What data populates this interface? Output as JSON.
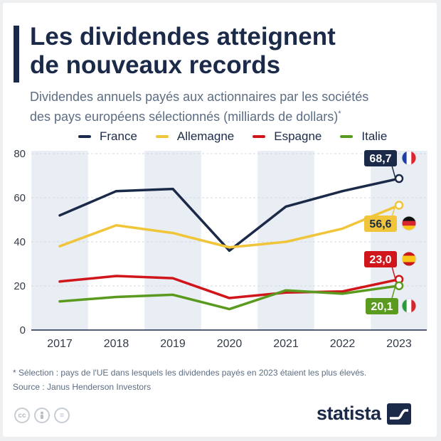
{
  "header": {
    "title_line1": "Les dividendes atteignent",
    "title_line2": "de nouveaux records",
    "subtitle_line1": "Dividendes annuels payés aux actionnaires par les sociétés",
    "subtitle_line2": "des pays européens sélectionnés (milliards de dollars)",
    "subtitle_mark": "*"
  },
  "legend": [
    {
      "label": "France",
      "color": "#1b2a48"
    },
    {
      "label": "Allemagne",
      "color": "#f0c53a"
    },
    {
      "label": "Espagne",
      "color": "#d0161b"
    },
    {
      "label": "Italie",
      "color": "#5a9a1e"
    }
  ],
  "chart_data": {
    "type": "line",
    "x": [
      "2017",
      "2018",
      "2019",
      "2020",
      "2021",
      "2022",
      "2023"
    ],
    "ylim": [
      0,
      80
    ],
    "yticks": [
      0,
      20,
      40,
      60,
      80
    ],
    "grid": true,
    "series": [
      {
        "name": "France",
        "color": "#1b2a48",
        "values": [
          52,
          63,
          64,
          36,
          56,
          63,
          68.7
        ],
        "end_label": "68,7",
        "flag": "fr"
      },
      {
        "name": "Allemagne",
        "color": "#f0c53a",
        "values": [
          38,
          47.5,
          44,
          37.5,
          40,
          46,
          56.6
        ],
        "end_label": "56,6",
        "flag": "de"
      },
      {
        "name": "Espagne",
        "color": "#d0161b",
        "values": [
          22,
          24.5,
          23.5,
          14.5,
          17,
          17.5,
          23.0
        ],
        "end_label": "23,0",
        "flag": "es"
      },
      {
        "name": "Italie",
        "color": "#5a9a1e",
        "values": [
          13,
          15,
          16,
          9.5,
          18,
          16.5,
          20.1
        ],
        "end_label": "20,1",
        "flag": "it"
      }
    ]
  },
  "footer": {
    "footnote": "* Sélection : pays de l'UE dans lesquels les dividendes payés en 2023 étaient les plus élevés.",
    "source": "Source : Janus Henderson Investors",
    "brand": "statista",
    "license_icons": [
      "cc-icon",
      "person-icon",
      "equals-icon"
    ]
  }
}
